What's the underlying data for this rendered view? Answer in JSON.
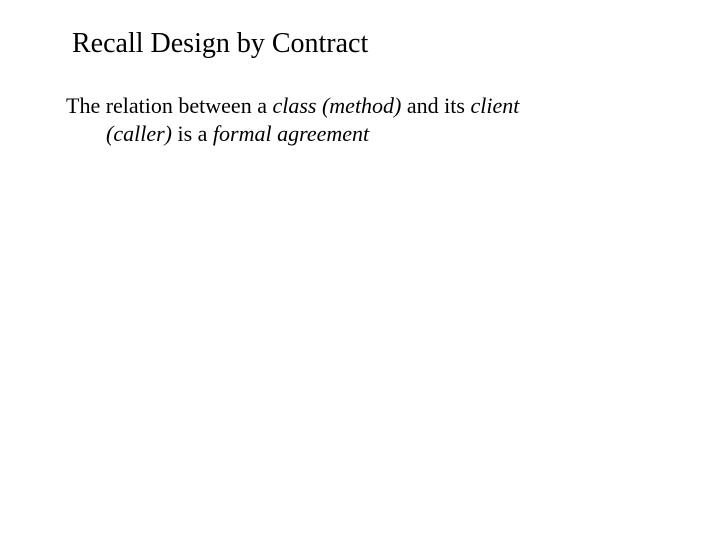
{
  "title": "Recall Design by Contract",
  "body": {
    "l1_a": "The relation between a ",
    "l1_b": "class (method)",
    "l1_c": " and its ",
    "l1_d": "client",
    "l2_a": "(caller)",
    "l2_b": " is a ",
    "l2_c": "formal agreement"
  },
  "style": {
    "background_color": "#ffffff",
    "text_color": "#000000",
    "font_family": "Times New Roman",
    "title_fontsize": 28,
    "body_fontsize": 22,
    "slide_width": 720,
    "slide_height": 540
  }
}
